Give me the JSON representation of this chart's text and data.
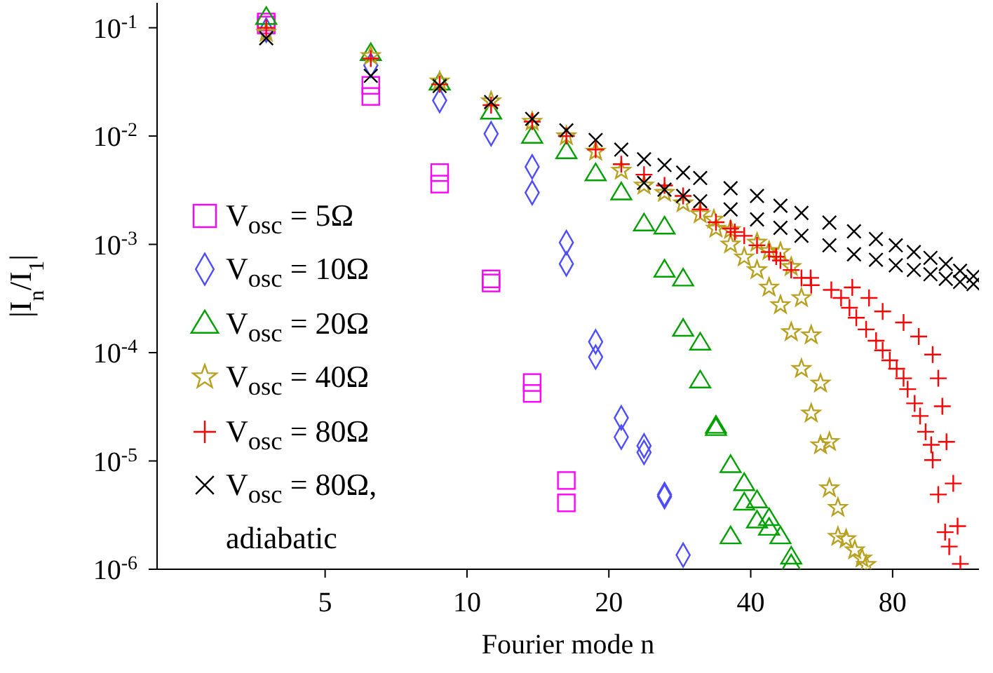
{
  "chart_data": {
    "type": "scatter",
    "xlabel": "Fourier mode n",
    "ylabel": "|I$_{n}$/I$_{1}$|",
    "log": "xy",
    "legend": "left",
    "xlim": [
      2.2,
      122
    ],
    "xticks": [
      5,
      10,
      20,
      40,
      80
    ],
    "ylim": [
      1e-06,
      0.17
    ],
    "yticks": [
      {
        "value": 1e-06,
        "label": "10$^{-6}$"
      },
      {
        "value": 1e-05,
        "label": "10$^{-5}$"
      },
      {
        "value": 0.0001,
        "label": "10$^{-4}$"
      },
      {
        "value": 0.001,
        "label": "10$^{-3}$"
      },
      {
        "value": 0.01,
        "label": "10$^{-2}$"
      },
      {
        "value": 0.1,
        "label": "10$^{-1}$"
      }
    ],
    "series": [
      {
        "name": "V$_{osc}$ =   5Ω",
        "color": "#ff00ff",
        "marker": "square",
        "x": [
          3.75,
          3.75,
          6.25,
          6.25,
          8.75,
          8.75,
          11.25,
          11.25,
          13.75,
          13.75,
          16.25,
          16.25
        ],
        "values": [
          0.106,
          0.113,
          0.0232,
          0.0294,
          0.0036,
          0.0046,
          0.00044,
          0.00048,
          5.3e-05,
          4.2e-05,
          6.6e-06,
          4.1e-06
        ]
      },
      {
        "name": "V$_{osc}$ = 10Ω",
        "color": "#4d4dff",
        "marker": "diamond",
        "x": [
          3.75,
          6.25,
          8.75,
          11.25,
          13.75,
          13.75,
          16.25,
          16.25,
          18.75,
          18.75,
          21.25,
          21.25,
          23.75,
          23.75,
          26.25,
          26.25,
          28.75
        ],
        "values": [
          0.095,
          0.045,
          0.0213,
          0.0105,
          0.003,
          0.0052,
          0.00066,
          0.00104,
          9.1e-05,
          0.000126,
          2.5e-05,
          1.66e-05,
          1.38e-05,
          1.2e-05,
          4.9e-06,
          4.7e-06,
          1.35e-06
        ]
      },
      {
        "name": "V$_{osc}$ = 20Ω",
        "color": "#00a000",
        "marker": "triangle",
        "x": [
          3.75,
          6.25,
          8.75,
          11.25,
          13.75,
          16.25,
          18.75,
          21.25,
          23.75,
          26.25,
          26.25,
          28.75,
          28.75,
          31.25,
          31.25,
          33.75,
          33.75,
          36.25,
          36.25,
          38.75,
          38.75,
          41.25,
          41.25,
          43.75,
          43.75,
          46.25,
          48.75,
          48.75
        ],
        "values": [
          0.125,
          0.058,
          0.031,
          0.0167,
          0.01,
          0.0072,
          0.0045,
          0.003,
          0.00155,
          0.00145,
          0.00058,
          0.00048,
          0.000165,
          0.000123,
          5.5e-05,
          2.1e-05,
          2e-05,
          9.1e-06,
          2e-06,
          6.2e-06,
          4.1e-06,
          4.3e-06,
          2.8e-06,
          2.95e-06,
          2.4e-06,
          2e-06,
          1.3e-06,
          1.1e-06
        ]
      },
      {
        "name": "V$_{osc}$ = 40Ω",
        "color": "#b8a020",
        "marker": "star",
        "x": [
          3.75,
          6.25,
          8.75,
          11.25,
          13.75,
          16.25,
          18.75,
          21.25,
          23.75,
          26.25,
          28.75,
          31.25,
          33.75,
          36.25,
          38.75,
          41.25,
          43.75,
          46.25,
          48.75,
          51.25,
          53.75,
          56.25,
          58.75,
          61.25,
          63.75,
          66.5,
          68.9,
          70.3,
          33.4,
          36.25,
          41.25,
          43.75,
          46.25,
          48.75,
          51.25,
          53.75,
          56.25,
          58.75,
          61.25
        ],
        "values": [
          0.09,
          0.055,
          0.032,
          0.021,
          0.0136,
          0.01,
          0.0072,
          0.0048,
          0.0035,
          0.003,
          0.0024,
          0.0019,
          0.0014,
          0.001,
          0.00076,
          0.00058,
          0.0004,
          0.000275,
          0.000155,
          7.1e-05,
          2.75e-05,
          1.4e-05,
          5.6e-06,
          2e-06,
          1.9e-06,
          1.5e-06,
          1.26e-06,
          1.1e-06,
          0.0017,
          0.00136,
          0.00104,
          0.00087,
          0.00085,
          0.00062,
          0.00032,
          0.000145,
          5.2e-05,
          1.5e-05,
          3.7e-06
        ]
      },
      {
        "name": "V$_{osc}$ = 80Ω",
        "color": "#ff0000",
        "marker": "plus",
        "x": [
          3.75,
          6.25,
          8.75,
          11.25,
          13.75,
          16.25,
          18.75,
          21.25,
          23.75,
          26.25,
          28.75,
          31.25,
          33.75,
          36.25,
          38.75,
          41.25,
          43.75,
          46.25,
          48.75,
          51.25,
          53.75,
          59.3,
          62.2,
          64.8,
          67,
          70.3,
          73.8,
          76.2,
          78.9,
          81.6,
          84.4,
          86.1,
          89.1,
          91.5,
          94,
          96.6,
          97.3,
          100,
          103.4,
          105.5,
          37,
          45.3,
          53.6,
          65.7,
          71.3,
          76.2,
          84.4,
          90.9,
          97.3,
          100,
          102,
          104.1,
          107.6,
          109.9,
          111.4
        ],
        "values": [
          0.1,
          0.052,
          0.03,
          0.0193,
          0.0136,
          0.01,
          0.0075,
          0.0055,
          0.0044,
          0.0035,
          0.0028,
          0.0021,
          0.0016,
          0.0014,
          0.0012,
          0.00098,
          0.00085,
          0.00071,
          0.00058,
          0.00049,
          0.00042,
          0.00038,
          0.00032,
          0.00026,
          0.00021,
          0.000164,
          0.000129,
          0.000105,
          8.5e-05,
          7.1e-05,
          5.8e-05,
          4.6e-05,
          3.4e-05,
          2.6e-05,
          1.86e-05,
          1.41e-05,
          1.02e-05,
          4.9e-06,
          2.2e-06,
          1.62e-06,
          0.0013,
          0.00077,
          0.00049,
          0.0004,
          0.00032,
          0.00024,
          0.00019,
          0.000141,
          9.6e-05,
          5.8e-05,
          3.2e-05,
          1.5e-05,
          6.2e-06,
          2.5e-06,
          1.12e-06
        ]
      },
      {
        "name": "V$_{osc}$ = 80Ω, adiabatic",
        "color": "#000000",
        "marker": "cross",
        "x": [
          3.75,
          6.25,
          8.75,
          11.25,
          13.75,
          16.25,
          18.75,
          21.25,
          23.75,
          26.25,
          28.75,
          31.25,
          36.25,
          41.25,
          46.25,
          51.25,
          58.75,
          66.25,
          73.75,
          81.25,
          88.75,
          96.25,
          103.75,
          111.25,
          118.75,
          23.75,
          26.25,
          28.75,
          31.25,
          36.25,
          41.25,
          46.25,
          51.25,
          58.75,
          66.25,
          73.75,
          81.25,
          88.75,
          96.25,
          103.75,
          111.25,
          118.75
        ],
        "values": [
          0.08,
          0.036,
          0.029,
          0.0206,
          0.0144,
          0.0113,
          0.0092,
          0.0075,
          0.0061,
          0.0054,
          0.0046,
          0.0041,
          0.0033,
          0.0028,
          0.00227,
          0.00195,
          0.00159,
          0.00132,
          0.00112,
          0.00098,
          0.00085,
          0.00075,
          0.00066,
          0.00057,
          0.00051,
          0.0037,
          0.0032,
          0.0028,
          0.0025,
          0.0021,
          0.0017,
          0.00142,
          0.0012,
          0.00098,
          0.00081,
          0.00072,
          0.00064,
          0.00058,
          0.00053,
          0.00048,
          0.00045,
          0.00043
        ]
      }
    ]
  }
}
